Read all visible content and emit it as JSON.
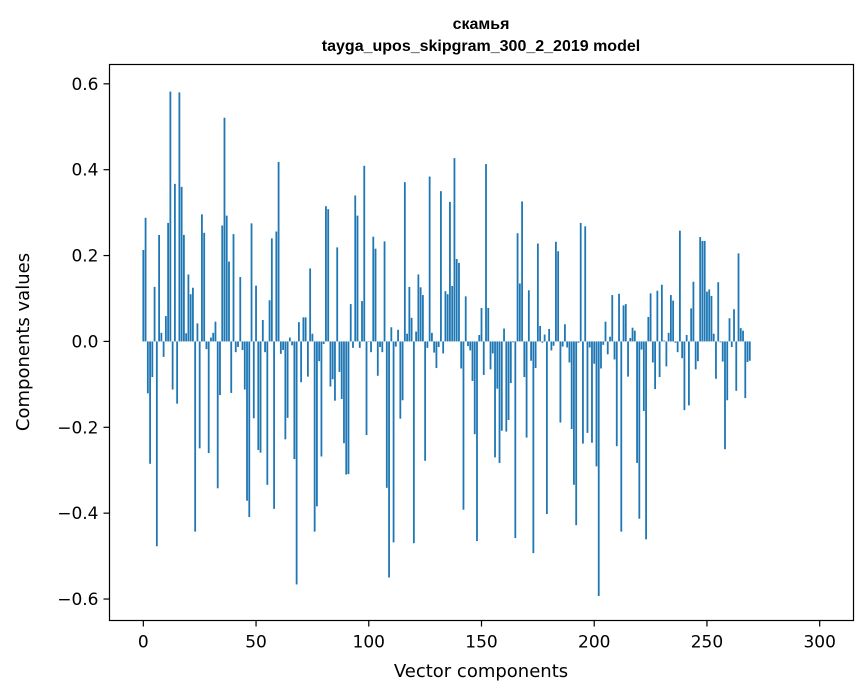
{
  "chart_data": {
    "type": "bar",
    "title": "скамья",
    "subtitle": "tayga_upos_skipgram_300_2_2019 model",
    "xlabel": "Vector components",
    "ylabel": "Components values",
    "xlim": [
      -15,
      315
    ],
    "ylim": [
      -0.65,
      0.645
    ],
    "x_ticks": [
      0,
      50,
      100,
      150,
      200,
      250,
      300
    ],
    "x_tick_labels": [
      "0",
      "50",
      "100",
      "150",
      "200",
      "250",
      "300"
    ],
    "y_ticks": [
      -0.6,
      -0.4,
      -0.2,
      0.0,
      0.2,
      0.4,
      0.6
    ],
    "y_tick_labels": [
      "−0.6",
      "−0.4",
      "−0.2",
      "0.0",
      "0.2",
      "0.4",
      "0.6"
    ],
    "bar_color": "#1f77b4",
    "grid": false,
    "values": [
      0.213,
      0.288,
      -0.121,
      -0.285,
      -0.083,
      0.127,
      -0.477,
      0.248,
      0.02,
      -0.036,
      0.059,
      0.276,
      0.582,
      -0.112,
      0.367,
      -0.145,
      0.58,
      0.36,
      0.248,
      0.019,
      0.156,
      0.11,
      0.125,
      -0.443,
      0.042,
      -0.249,
      0.296,
      0.253,
      -0.018,
      -0.26,
      0.009,
      0.02,
      0.046,
      -0.342,
      -0.125,
      0.27,
      0.521,
      0.293,
      0.186,
      -0.12,
      0.25,
      -0.025,
      -0.013,
      0.15,
      -0.02,
      -0.112,
      -0.371,
      -0.409,
      0.275,
      -0.179,
      0.13,
      -0.253,
      -0.259,
      0.05,
      -0.025,
      -0.334,
      0.096,
      0.24,
      -0.39,
      0.256,
      0.418,
      -0.029,
      -0.02,
      -0.228,
      -0.178,
      0.009,
      -0.009,
      -0.274,
      -0.566,
      0.045,
      -0.095,
      0.056,
      0.056,
      -0.082,
      0.17,
      0.018,
      -0.443,
      -0.384,
      -0.046,
      -0.268,
      -0.006,
      0.315,
      0.308,
      -0.105,
      -0.088,
      -0.138,
      0.219,
      -0.071,
      -0.134,
      -0.237,
      -0.31,
      -0.309,
      0.087,
      -0.015,
      0.34,
      0.293,
      -0.015,
      0.094,
      0.409,
      -0.218,
      -0.001,
      -0.025,
      0.244,
      0.216,
      -0.08,
      -0.013,
      -0.025,
      0.233,
      -0.341,
      -0.55,
      0.033,
      -0.468,
      -0.012,
      0.027,
      -0.18,
      -0.137,
      0.371,
      0.018,
      0.127,
      0.055,
      -0.47,
      0.023,
      0.156,
      0.126,
      0.108,
      -0.278,
      -0.015,
      0.384,
      0.02,
      -0.026,
      -0.062,
      -0.013,
      0.35,
      -0.028,
      0.117,
      0.11,
      0.325,
      0.129,
      0.427,
      0.192,
      0.183,
      -0.063,
      -0.392,
      0.105,
      -0.011,
      -0.021,
      -0.092,
      -0.216,
      -0.465,
      0.015,
      0.078,
      -0.078,
      0.413,
      0.078,
      -0.065,
      -0.028,
      -0.27,
      -0.11,
      -0.283,
      -0.208,
      0.03,
      -0.21,
      -0.183,
      -0.097,
      -0.002,
      -0.458,
      0.252,
      0.135,
      0.326,
      -0.083,
      -0.224,
      0.119,
      -0.045,
      -0.493,
      -0.062,
      0.228,
      0.036,
      -0.003,
      0.016,
      -0.402,
      0.029,
      -0.021,
      -0.01,
      0.232,
      0.21,
      -0.189,
      -0.012,
      0.04,
      -0.014,
      -0.049,
      -0.204,
      -0.334,
      -0.428,
      -0.003,
      0.276,
      -0.238,
      0.268,
      -0.213,
      -0.014,
      -0.236,
      -0.052,
      -0.291,
      -0.593,
      -0.063,
      -0.008,
      0.046,
      -0.03,
      0.011,
      0.108,
      -0.042,
      -0.244,
      0.111,
      -0.443,
      0.084,
      0.087,
      -0.082,
      0.008,
      0.032,
      0.025,
      -0.283,
      -0.413,
      -0.019,
      -0.162,
      -0.461,
      0.057,
      0.112,
      -0.049,
      -0.111,
      0.118,
      -0.083,
      0.132,
      0.002,
      -0.058,
      0.02,
      0.108,
      0.095,
      -0.003,
      -0.025,
      0.258,
      -0.039,
      -0.16,
      0.015,
      -0.149,
      0.077,
      0.139,
      -0.065,
      -0.046,
      0.243,
      0.234,
      0.234,
      0.116,
      0.121,
      0.106,
      0.018,
      -0.087,
      0.138,
      -0.002,
      -0.047,
      -0.251,
      -0.137,
      0.054,
      -0.013,
      0.075,
      -0.115,
      0.205,
      0.031,
      0.025,
      -0.132,
      -0.048,
      -0.045
    ]
  }
}
